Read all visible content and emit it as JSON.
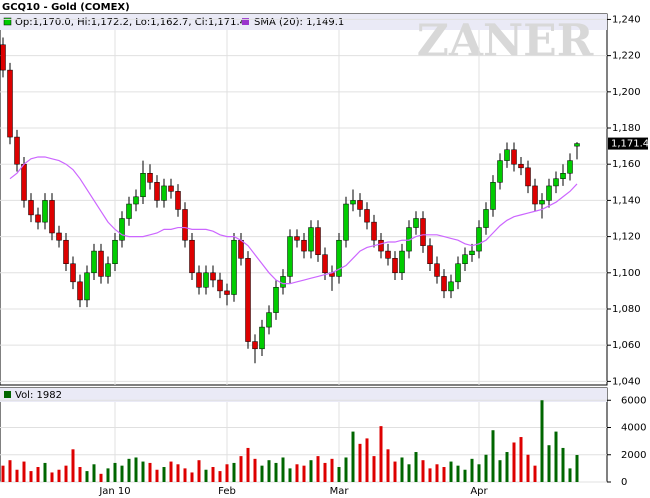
{
  "chart_data": [
    {
      "type": "candlestick",
      "title": "GCQ10 - Gold (COMEX)",
      "ohlc_label": "Op:1,170.0, Hi:1,172.2, Lo:1,162.7, Cl:1,171.4",
      "sma_label": "SMA (20): 1,149.1",
      "last_price_label": "1,171.4",
      "watermark": "ZANER",
      "categories": [
        null,
        null,
        null,
        null,
        null,
        null,
        null,
        null,
        null,
        null,
        null,
        null,
        null,
        null,
        null,
        null,
        "Jan 10",
        null,
        null,
        null,
        null,
        null,
        null,
        null,
        null,
        null,
        null,
        null,
        null,
        null,
        null,
        null,
        "Feb",
        null,
        null,
        null,
        null,
        null,
        null,
        null,
        null,
        null,
        null,
        null,
        null,
        null,
        null,
        null,
        "Mar",
        null,
        null,
        null,
        null,
        null,
        null,
        null,
        null,
        null,
        null,
        null,
        null,
        null,
        null,
        null,
        null,
        null,
        null,
        null,
        "Apr",
        null,
        null,
        null,
        null,
        null,
        null,
        null,
        null,
        null,
        null,
        null,
        null,
        null,
        null
      ],
      "open": [
        1226,
        1212,
        1175,
        1160,
        1140,
        1132,
        1128,
        1140,
        1122,
        1118,
        1105,
        1095,
        1085,
        1100,
        1112,
        1098,
        1105,
        1118,
        1130,
        1138,
        1142,
        1155,
        1150,
        1140,
        1148,
        1145,
        1135,
        1118,
        1100,
        1092,
        1100,
        1096,
        1090,
        1088,
        1118,
        1108,
        1062,
        1058,
        1070,
        1078,
        1092,
        1098,
        1120,
        1118,
        1112,
        1125,
        1110,
        1100,
        1098,
        1118,
        1138,
        1140,
        1135,
        1128,
        1118,
        1112,
        1108,
        1100,
        1112,
        1125,
        1130,
        1115,
        1105,
        1098,
        1090,
        1095,
        1105,
        1110,
        1112,
        1125,
        1135,
        1150,
        1162,
        1168,
        1160,
        1158,
        1148,
        1138,
        1140,
        1148,
        1152,
        1155,
        1170.0
      ],
      "high": [
        1230,
        1216,
        1179,
        1164,
        1144,
        1136,
        1144,
        1144,
        1126,
        1122,
        1109,
        1099,
        1104,
        1116,
        1116,
        1109,
        1122,
        1134,
        1142,
        1146,
        1162,
        1160,
        1154,
        1152,
        1152,
        1149,
        1139,
        1122,
        1104,
        1104,
        1104,
        1100,
        1094,
        1122,
        1122,
        1112,
        1066,
        1074,
        1082,
        1096,
        1102,
        1124,
        1124,
        1122,
        1129,
        1129,
        1114,
        1104,
        1122,
        1142,
        1146,
        1144,
        1139,
        1132,
        1122,
        1116,
        1112,
        1116,
        1129,
        1134,
        1134,
        1119,
        1109,
        1102,
        1099,
        1109,
        1114,
        1116,
        1129,
        1139,
        1154,
        1166,
        1172,
        1172,
        1164,
        1162,
        1152,
        1144,
        1152,
        1156,
        1160,
        1166,
        1172.2
      ],
      "low": [
        1208,
        1171,
        1156,
        1136,
        1128,
        1124,
        1124,
        1118,
        1114,
        1101,
        1091,
        1081,
        1081,
        1096,
        1094,
        1094,
        1101,
        1114,
        1126,
        1134,
        1138,
        1146,
        1136,
        1136,
        1141,
        1131,
        1114,
        1096,
        1088,
        1088,
        1092,
        1086,
        1082,
        1084,
        1104,
        1058,
        1050,
        1054,
        1066,
        1074,
        1088,
        1094,
        1114,
        1108,
        1108,
        1106,
        1096,
        1090,
        1094,
        1114,
        1134,
        1131,
        1124,
        1114,
        1108,
        1104,
        1096,
        1096,
        1108,
        1121,
        1111,
        1101,
        1094,
        1086,
        1086,
        1091,
        1101,
        1106,
        1108,
        1121,
        1131,
        1146,
        1158,
        1156,
        1154,
        1144,
        1134,
        1130,
        1136,
        1144,
        1148,
        1151,
        1162.7
      ],
      "close": [
        1212,
        1175,
        1160,
        1140,
        1132,
        1128,
        1140,
        1122,
        1118,
        1105,
        1095,
        1085,
        1100,
        1112,
        1098,
        1105,
        1118,
        1130,
        1138,
        1142,
        1155,
        1150,
        1140,
        1148,
        1145,
        1135,
        1118,
        1100,
        1092,
        1100,
        1096,
        1090,
        1088,
        1118,
        1108,
        1062,
        1058,
        1070,
        1078,
        1092,
        1098,
        1120,
        1118,
        1112,
        1125,
        1110,
        1100,
        1098,
        1118,
        1138,
        1140,
        1135,
        1128,
        1118,
        1112,
        1108,
        1100,
        1112,
        1125,
        1130,
        1115,
        1105,
        1098,
        1090,
        1095,
        1105,
        1110,
        1112,
        1125,
        1135,
        1150,
        1162,
        1168,
        1160,
        1158,
        1148,
        1138,
        1140,
        1148,
        1152,
        1155,
        1162,
        1171.4
      ],
      "sma_values": [
        null,
        1152,
        1155,
        1160,
        1163,
        1164,
        1164,
        1163,
        1162,
        1160,
        1157,
        1152,
        1146,
        1140,
        1134,
        1128,
        1124,
        1121,
        1120,
        1120,
        1120,
        1121,
        1122,
        1124,
        1124,
        1125,
        1125,
        1124,
        1124,
        1124,
        1123,
        1121,
        1120,
        1120,
        1118,
        1115,
        1110,
        1105,
        1100,
        1096,
        1094,
        1094,
        1095,
        1096,
        1097,
        1098,
        1099,
        1100,
        1102,
        1104,
        1108,
        1112,
        1114,
        1115,
        1116,
        1117,
        1117,
        1118,
        1118,
        1120,
        1121,
        1121,
        1121,
        1120,
        1119,
        1118,
        1116,
        1115,
        1116,
        1118,
        1122,
        1126,
        1129,
        1131,
        1132,
        1133,
        1134,
        1135,
        1137,
        1139,
        1142,
        1145,
        1149.1
      ],
      "up_color": "#00cc00",
      "down_color": "#dd0000",
      "sma_color": "#cc66ff",
      "ylim": [
        1038,
        1243
      ],
      "yticks": [
        {
          "value": 1040,
          "label": "1,040"
        },
        {
          "value": 1060,
          "label": "1,060"
        },
        {
          "value": 1080,
          "label": "1,080"
        },
        {
          "value": 1100,
          "label": "1,100"
        },
        {
          "value": 1120,
          "label": "1,120"
        },
        {
          "value": 1140,
          "label": "1,140"
        },
        {
          "value": 1160,
          "label": "1,160"
        },
        {
          "value": 1180,
          "label": "1,180"
        },
        {
          "value": 1200,
          "label": "1,200"
        },
        {
          "value": 1220,
          "label": "1,220"
        },
        {
          "value": 1240,
          "label": "1,240"
        }
      ],
      "grid": true
    },
    {
      "type": "bar",
      "title": "Vol: 1982",
      "values": [
        1200,
        1600,
        900,
        1500,
        800,
        1100,
        1400,
        700,
        900,
        1200,
        2400,
        1100,
        800,
        1300,
        600,
        1000,
        1400,
        1200,
        1700,
        1800,
        1500,
        1400,
        900,
        1100,
        1500,
        1300,
        1000,
        700,
        1600,
        900,
        1100,
        800,
        1300,
        1400,
        1900,
        2500,
        1700,
        1200,
        1600,
        1400,
        1800,
        1000,
        1300,
        1200,
        1600,
        1900,
        1400,
        1700,
        1100,
        1800,
        3700,
        2800,
        3200,
        1900,
        4100,
        2400,
        1500,
        1800,
        1300,
        2200,
        1600,
        1000,
        1300,
        1100,
        1500,
        1200,
        900,
        1700,
        1300,
        2000,
        3800,
        1600,
        2200,
        2900,
        3300,
        2000,
        1200,
        6000,
        2700,
        3700,
        2500,
        1000,
        1982
      ],
      "color": "#006600",
      "ylim": [
        0,
        6900
      ],
      "yticks": [
        0,
        2000,
        4000,
        6000
      ],
      "grid": true
    }
  ]
}
